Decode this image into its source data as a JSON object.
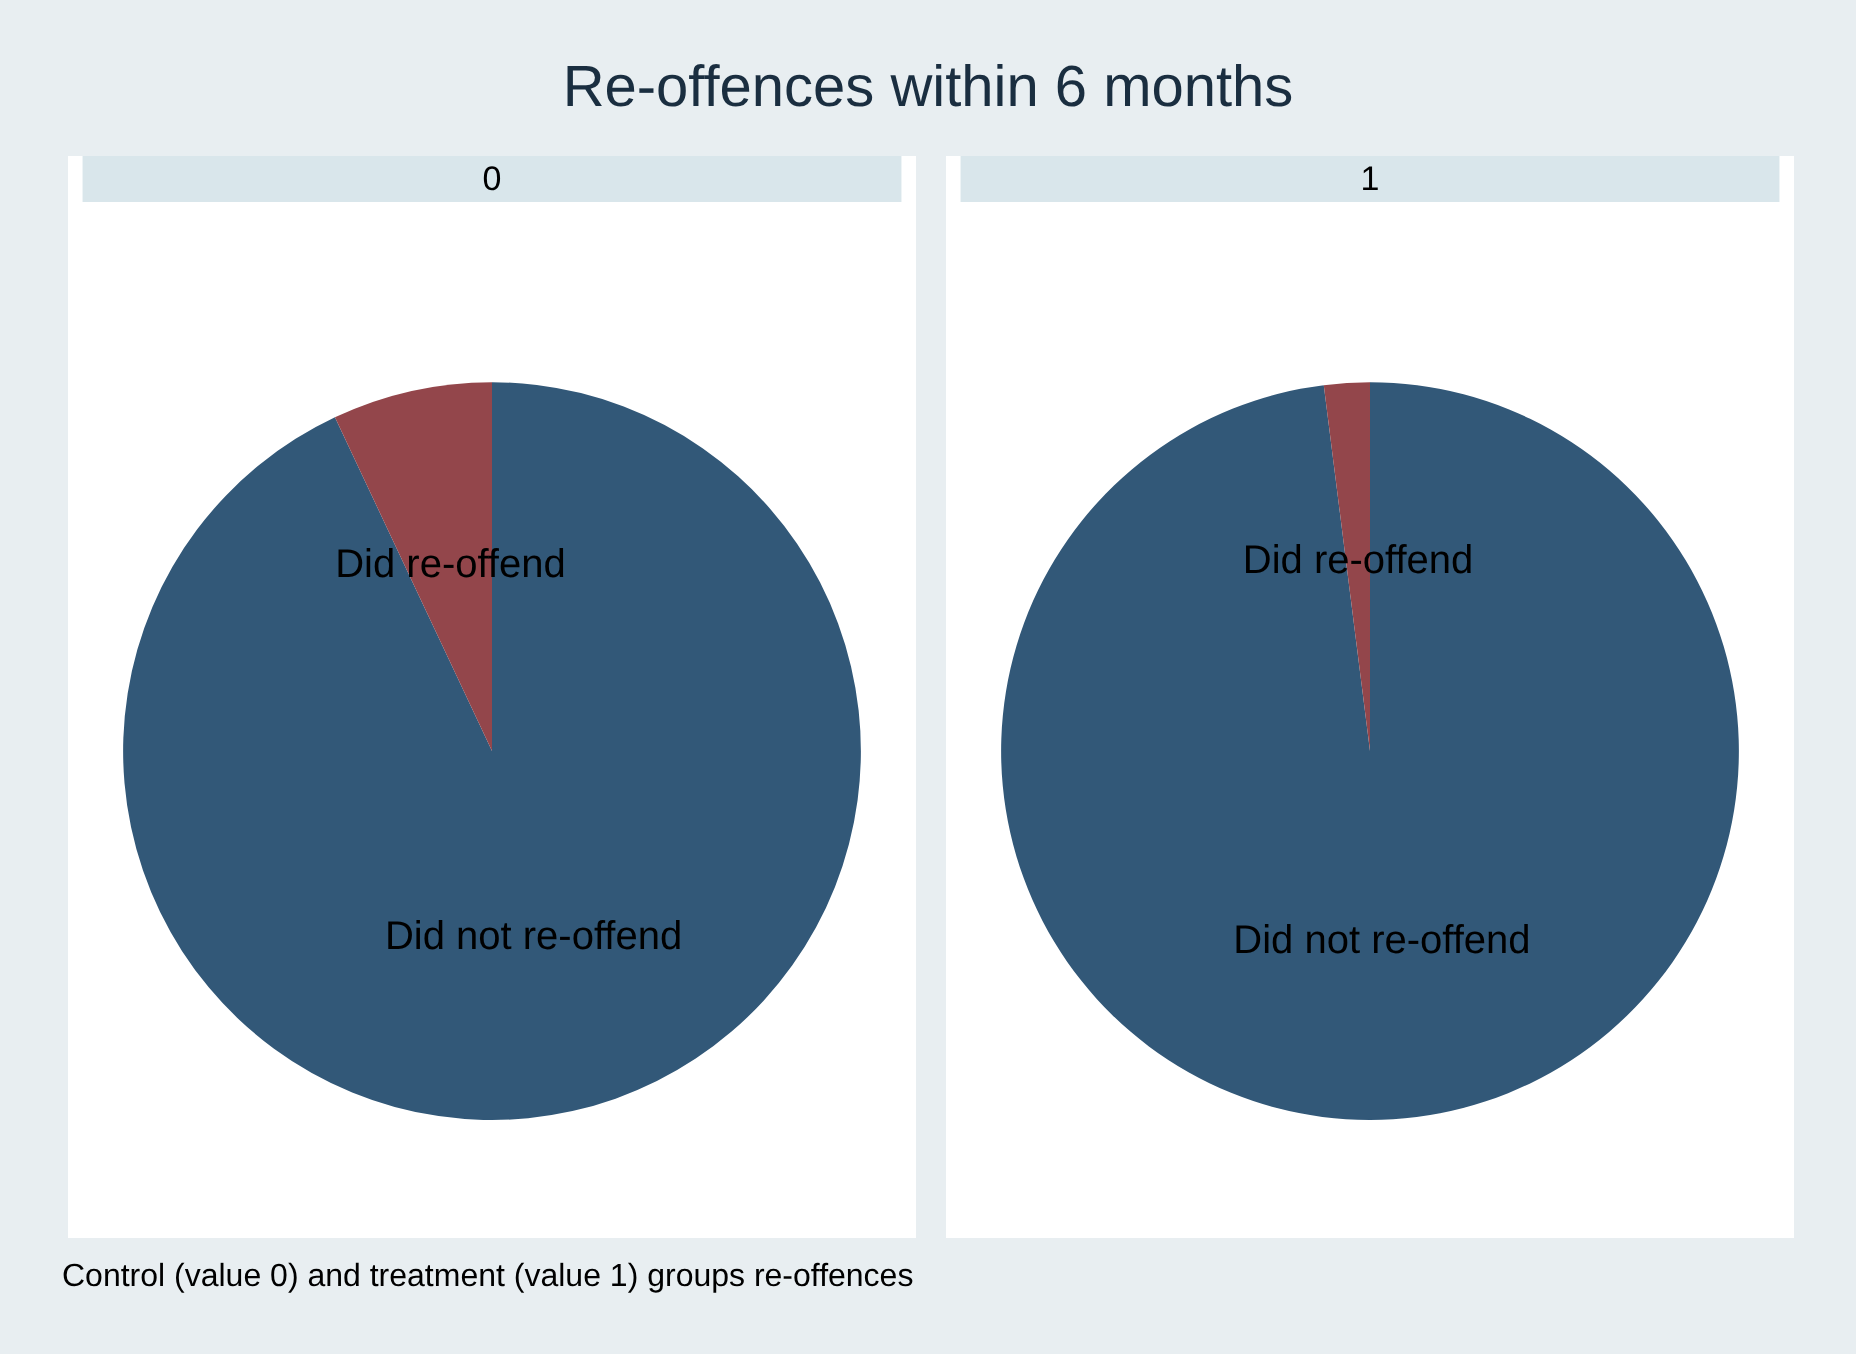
{
  "chart_data": [
    {
      "type": "other",
      "title": "Re-offences within 6 months",
      "annotations": [
        "Control (value 0) and treatment (value 1) groups re-offences"
      ]
    },
    {
      "type": "pie",
      "title": "0",
      "categories": [
        "Did not re-offend",
        "Did re-offend"
      ],
      "values": [
        93,
        7
      ],
      "colors": [
        "#325878",
        "#93464b"
      ]
    },
    {
      "type": "pie",
      "title": "1",
      "categories": [
        "Did not re-offend",
        "Did re-offend"
      ],
      "values": [
        98,
        2
      ],
      "colors": [
        "#325878",
        "#93464b"
      ]
    }
  ]
}
